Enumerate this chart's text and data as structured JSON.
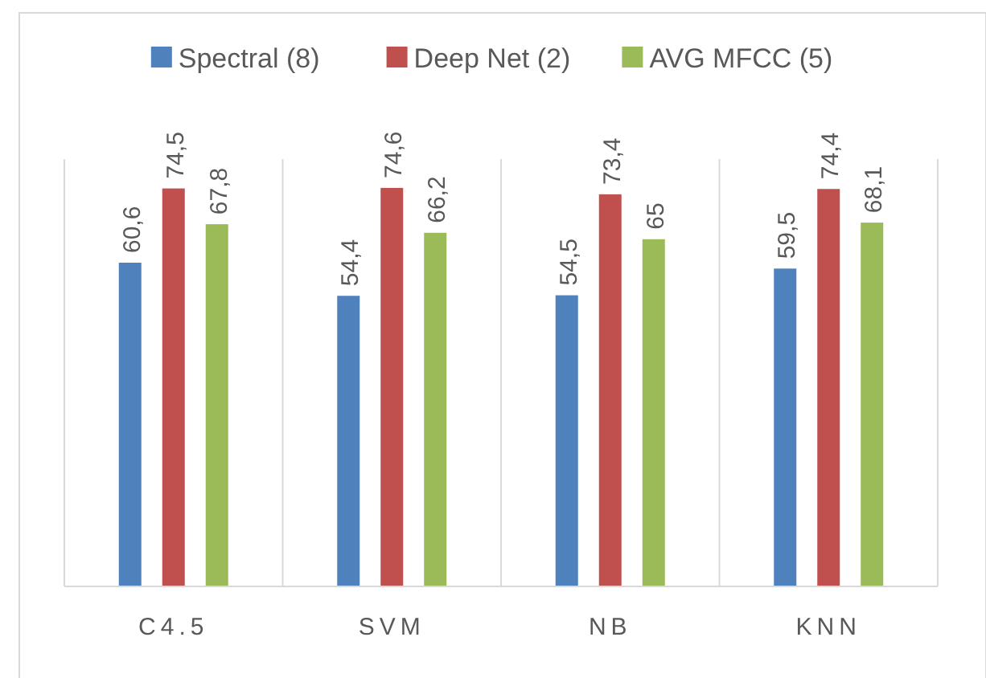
{
  "chart_data": {
    "type": "bar",
    "categories": [
      "C4.5",
      "SVM",
      "NB",
      "KNN"
    ],
    "series": [
      {
        "name": "Spectral (8)",
        "color": "#4f81bd",
        "values": [
          60.6,
          54.4,
          54.5,
          59.5
        ],
        "value_labels": [
          "60,6",
          "54,4",
          "54,5",
          "59,5"
        ]
      },
      {
        "name": "Deep Net (2)",
        "color": "#c0504d",
        "values": [
          74.5,
          74.6,
          73.4,
          74.4
        ],
        "value_labels": [
          "74,5",
          "74,6",
          "73,4",
          "74,4"
        ]
      },
      {
        "name": "AVG MFCC (5)",
        "color": "#9bbb59",
        "values": [
          67.8,
          66.2,
          65,
          68.1
        ],
        "value_labels": [
          "67,8",
          "66,2",
          "65",
          "68,1"
        ]
      }
    ],
    "ylim": [
      0,
      80
    ],
    "tick_labels": "x",
    "grid": "x",
    "legend": "top"
  }
}
